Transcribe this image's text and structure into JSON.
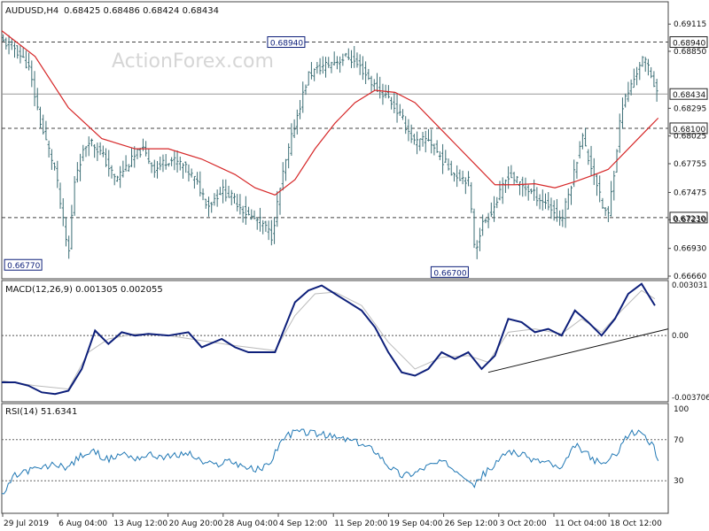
{
  "header": {
    "instrument": "AUDUSD,H4",
    "ohlc": "0.68425 0.68486 0.68424 0.68434",
    "watermark": "ActionForex.com"
  },
  "chart_data": [
    {
      "type": "bar",
      "name": "price",
      "ylim": [
        0.6666,
        0.6916
      ],
      "yticks": [
        "0.69115",
        "0.68850",
        "0.68295",
        "0.68025",
        "0.67755",
        "0.67475",
        "0.67210",
        "0.66930",
        "0.66660"
      ],
      "ytick_values": [
        0.69115,
        0.6885,
        0.68295,
        0.68025,
        0.67755,
        0.67475,
        0.6721,
        0.6693,
        0.6666
      ],
      "xlabels": [
        "29 Jul 2019",
        "6 Aug 04:00",
        "13 Aug 12:00",
        "20 Aug 20:00",
        "28 Aug 04:00",
        "4 Sep 12:00",
        "11 Sep 20:00",
        "19 Sep 04:00",
        "26 Sep 12:00",
        "3 Oct 20:00",
        "11 Oct 04:00",
        "18 Oct 12:00"
      ],
      "levels": [
        {
          "label": "0.68940",
          "value": 0.6894,
          "style": "dashed"
        },
        {
          "label": "0.68100",
          "value": 0.681,
          "style": "dashed"
        },
        {
          "label": "0.67230",
          "value": 0.6723,
          "style": "dashed"
        },
        {
          "label": "0.68434",
          "value": 0.68434,
          "style": "solid"
        }
      ],
      "annotations": [
        {
          "label": "0.68940",
          "x": 0.46,
          "value": 0.6894
        },
        {
          "label": "0.66770",
          "x": 0.06,
          "value": 0.6677
        },
        {
          "label": "0.66700",
          "x": 0.7,
          "value": 0.667
        }
      ],
      "close_path": [
        [
          0.0,
          0.6895
        ],
        [
          0.02,
          0.6888
        ],
        [
          0.04,
          0.687
        ],
        [
          0.06,
          0.681
        ],
        [
          0.08,
          0.677
        ],
        [
          0.1,
          0.6685
        ],
        [
          0.11,
          0.6765
        ],
        [
          0.13,
          0.68
        ],
        [
          0.15,
          0.6785
        ],
        [
          0.17,
          0.676
        ],
        [
          0.19,
          0.6775
        ],
        [
          0.21,
          0.679
        ],
        [
          0.23,
          0.677
        ],
        [
          0.25,
          0.678
        ],
        [
          0.27,
          0.6775
        ],
        [
          0.29,
          0.676
        ],
        [
          0.31,
          0.6735
        ],
        [
          0.33,
          0.675
        ],
        [
          0.35,
          0.674
        ],
        [
          0.37,
          0.6725
        ],
        [
          0.39,
          0.6718
        ],
        [
          0.405,
          0.6705
        ],
        [
          0.42,
          0.676
        ],
        [
          0.44,
          0.6815
        ],
        [
          0.46,
          0.6862
        ],
        [
          0.48,
          0.687
        ],
        [
          0.5,
          0.6875
        ],
        [
          0.52,
          0.688
        ],
        [
          0.54,
          0.6868
        ],
        [
          0.56,
          0.685
        ],
        [
          0.58,
          0.684
        ],
        [
          0.6,
          0.682
        ],
        [
          0.62,
          0.6795
        ],
        [
          0.64,
          0.68
        ],
        [
          0.66,
          0.678
        ],
        [
          0.68,
          0.6765
        ],
        [
          0.7,
          0.676
        ],
        [
          0.71,
          0.669
        ],
        [
          0.72,
          0.6715
        ],
        [
          0.74,
          0.6735
        ],
        [
          0.76,
          0.6765
        ],
        [
          0.78,
          0.6755
        ],
        [
          0.8,
          0.6745
        ],
        [
          0.82,
          0.6735
        ],
        [
          0.84,
          0.672
        ],
        [
          0.86,
          0.677
        ],
        [
          0.87,
          0.6805
        ],
        [
          0.88,
          0.678
        ],
        [
          0.89,
          0.6765
        ],
        [
          0.9,
          0.6735
        ],
        [
          0.91,
          0.6725
        ],
        [
          0.92,
          0.6775
        ],
        [
          0.93,
          0.683
        ],
        [
          0.95,
          0.686
        ],
        [
          0.96,
          0.6878
        ],
        [
          0.97,
          0.687
        ],
        [
          0.985,
          0.6843
        ]
      ],
      "ema_path": [
        [
          0.0,
          0.6905
        ],
        [
          0.05,
          0.688
        ],
        [
          0.1,
          0.683
        ],
        [
          0.15,
          0.68
        ],
        [
          0.2,
          0.679
        ],
        [
          0.25,
          0.679
        ],
        [
          0.3,
          0.678
        ],
        [
          0.35,
          0.6765
        ],
        [
          0.38,
          0.6752
        ],
        [
          0.41,
          0.6745
        ],
        [
          0.44,
          0.676
        ],
        [
          0.47,
          0.679
        ],
        [
          0.5,
          0.6815
        ],
        [
          0.53,
          0.6835
        ],
        [
          0.56,
          0.6847
        ],
        [
          0.59,
          0.6845
        ],
        [
          0.62,
          0.6835
        ],
        [
          0.65,
          0.6815
        ],
        [
          0.68,
          0.6795
        ],
        [
          0.71,
          0.6775
        ],
        [
          0.74,
          0.6755
        ],
        [
          0.77,
          0.6755
        ],
        [
          0.8,
          0.6756
        ],
        [
          0.83,
          0.6752
        ],
        [
          0.86,
          0.6758
        ],
        [
          0.89,
          0.6765
        ],
        [
          0.91,
          0.677
        ],
        [
          0.94,
          0.679
        ],
        [
          0.97,
          0.681
        ],
        [
          0.985,
          0.682
        ]
      ]
    },
    {
      "type": "line",
      "name": "macd",
      "title": "MACD(12,26,9) 0.001305 0.002055",
      "ylim": [
        -0.0037,
        0.00303
      ],
      "yticks": [
        "0.003031",
        "0.00",
        "-0.003706"
      ],
      "ytick_values": [
        0.003031,
        0.0,
        -0.003706
      ],
      "macd_path": [
        [
          0.0,
          -0.0028
        ],
        [
          0.02,
          -0.0028
        ],
        [
          0.04,
          -0.003
        ],
        [
          0.06,
          -0.0034
        ],
        [
          0.08,
          -0.0035
        ],
        [
          0.1,
          -0.0033
        ],
        [
          0.12,
          -0.002
        ],
        [
          0.14,
          0.0003
        ],
        [
          0.16,
          -0.0005
        ],
        [
          0.18,
          0.0002
        ],
        [
          0.2,
          0.0
        ],
        [
          0.22,
          0.0001
        ],
        [
          0.25,
          0.0
        ],
        [
          0.28,
          0.0002
        ],
        [
          0.3,
          -0.0007
        ],
        [
          0.33,
          -0.0002
        ],
        [
          0.35,
          -0.0007
        ],
        [
          0.37,
          -0.001
        ],
        [
          0.39,
          -0.001
        ],
        [
          0.41,
          -0.001
        ],
        [
          0.42,
          0.0
        ],
        [
          0.44,
          0.002
        ],
        [
          0.46,
          0.0027
        ],
        [
          0.48,
          0.003
        ],
        [
          0.5,
          0.0025
        ],
        [
          0.52,
          0.002
        ],
        [
          0.54,
          0.0015
        ],
        [
          0.56,
          0.0005
        ],
        [
          0.58,
          -0.001
        ],
        [
          0.6,
          -0.0022
        ],
        [
          0.62,
          -0.0024
        ],
        [
          0.64,
          -0.002
        ],
        [
          0.66,
          -0.001
        ],
        [
          0.68,
          -0.0014
        ],
        [
          0.7,
          -0.001
        ],
        [
          0.72,
          -0.002
        ],
        [
          0.74,
          -0.0012
        ],
        [
          0.76,
          0.001
        ],
        [
          0.78,
          0.0008
        ],
        [
          0.8,
          0.0002
        ],
        [
          0.82,
          0.0004
        ],
        [
          0.84,
          0.0
        ],
        [
          0.86,
          0.0015
        ],
        [
          0.88,
          0.0008
        ],
        [
          0.9,
          0.0
        ],
        [
          0.92,
          0.001
        ],
        [
          0.94,
          0.0025
        ],
        [
          0.96,
          0.0031
        ],
        [
          0.98,
          0.0018
        ]
      ],
      "signal_path": [
        [
          0.0,
          -0.0027
        ],
        [
          0.05,
          -0.003
        ],
        [
          0.1,
          -0.0032
        ],
        [
          0.13,
          -0.001
        ],
        [
          0.16,
          -0.0002
        ],
        [
          0.2,
          0.0001
        ],
        [
          0.25,
          0.0
        ],
        [
          0.3,
          -0.0003
        ],
        [
          0.35,
          -0.0006
        ],
        [
          0.41,
          -0.0009
        ],
        [
          0.44,
          0.0012
        ],
        [
          0.47,
          0.0025
        ],
        [
          0.5,
          0.0026
        ],
        [
          0.54,
          0.0018
        ],
        [
          0.58,
          -0.0004
        ],
        [
          0.62,
          -0.002
        ],
        [
          0.66,
          -0.0013
        ],
        [
          0.7,
          -0.0012
        ],
        [
          0.73,
          -0.0016
        ],
        [
          0.76,
          0.0002
        ],
        [
          0.8,
          0.0004
        ],
        [
          0.84,
          0.0001
        ],
        [
          0.87,
          0.001
        ],
        [
          0.9,
          0.0002
        ],
        [
          0.93,
          0.0015
        ],
        [
          0.96,
          0.0027
        ],
        [
          0.98,
          0.0022
        ]
      ],
      "trendline": [
        [
          0.73,
          -0.0022
        ],
        [
          1.0,
          0.0004
        ]
      ]
    },
    {
      "type": "line",
      "name": "rsi",
      "title": "RSI(14) 51.6341",
      "ylim": [
        0,
        100
      ],
      "yticks": [
        "100",
        "70",
        "30"
      ],
      "ytick_values": [
        100,
        70,
        30
      ],
      "path": [
        [
          0.0,
          15
        ],
        [
          0.02,
          35
        ],
        [
          0.04,
          40
        ],
        [
          0.06,
          42
        ],
        [
          0.08,
          46
        ],
        [
          0.1,
          43
        ],
        [
          0.12,
          55
        ],
        [
          0.14,
          58
        ],
        [
          0.16,
          50
        ],
        [
          0.18,
          57
        ],
        [
          0.2,
          52
        ],
        [
          0.22,
          55
        ],
        [
          0.25,
          53
        ],
        [
          0.28,
          57
        ],
        [
          0.3,
          48
        ],
        [
          0.32,
          45
        ],
        [
          0.34,
          50
        ],
        [
          0.36,
          45
        ],
        [
          0.38,
          40
        ],
        [
          0.4,
          45
        ],
        [
          0.42,
          70
        ],
        [
          0.44,
          78
        ],
        [
          0.46,
          77
        ],
        [
          0.48,
          75
        ],
        [
          0.5,
          72
        ],
        [
          0.52,
          70
        ],
        [
          0.54,
          65
        ],
        [
          0.56,
          60
        ],
        [
          0.58,
          45
        ],
        [
          0.6,
          35
        ],
        [
          0.62,
          38
        ],
        [
          0.64,
          45
        ],
        [
          0.66,
          48
        ],
        [
          0.68,
          42
        ],
        [
          0.7,
          33
        ],
        [
          0.71,
          25
        ],
        [
          0.72,
          35
        ],
        [
          0.74,
          45
        ],
        [
          0.76,
          60
        ],
        [
          0.78,
          55
        ],
        [
          0.8,
          50
        ],
        [
          0.82,
          48
        ],
        [
          0.84,
          40
        ],
        [
          0.86,
          65
        ],
        [
          0.87,
          60
        ],
        [
          0.88,
          55
        ],
        [
          0.9,
          45
        ],
        [
          0.92,
          55
        ],
        [
          0.94,
          75
        ],
        [
          0.96,
          78
        ],
        [
          0.98,
          60
        ],
        [
          0.985,
          51
        ]
      ]
    }
  ],
  "colors": {
    "price": "#3b6e75",
    "ema": "#d62728",
    "macd": "#0d1f7a",
    "signal": "#bbbbbb",
    "rsi": "#1f77b4",
    "grid": "#555555",
    "box": "#0d1f7a"
  }
}
